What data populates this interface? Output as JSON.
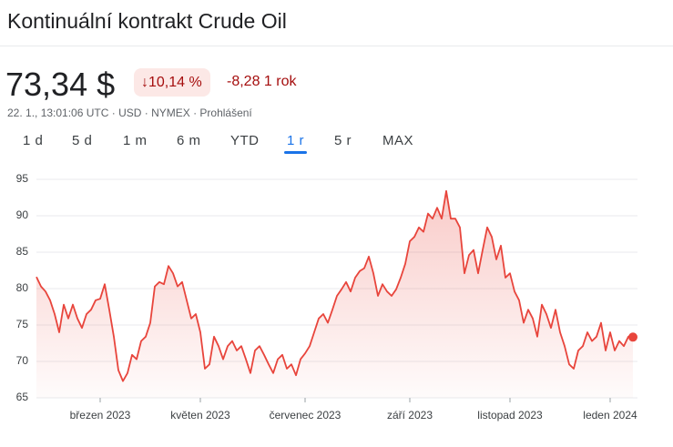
{
  "header": {
    "title": "Kontinuální kontrakt Crude Oil"
  },
  "quote": {
    "price": "73,34 $",
    "change_pct": "10,14 %",
    "change": "-8,28",
    "period": "1 rok",
    "meta": "22. 1., 13:01:06 UTC · USD · NYMEX · Prohlášení"
  },
  "tabs": [
    "1 d",
    "5 d",
    "1 m",
    "6 m",
    "YTD",
    "1 r",
    "5 r",
    "MAX"
  ],
  "chart_data": {
    "type": "line",
    "color": "#e8453c",
    "grid": true,
    "ylim": [
      65,
      95
    ],
    "yticks": [
      65,
      70,
      75,
      80,
      85,
      90,
      95
    ],
    "categories": [
      null,
      null,
      null,
      null,
      null,
      null,
      null,
      null,
      null,
      null,
      null,
      null,
      null,
      null,
      "březen 2023",
      null,
      null,
      null,
      null,
      null,
      null,
      null,
      null,
      null,
      null,
      null,
      null,
      null,
      null,
      null,
      null,
      null,
      null,
      null,
      null,
      null,
      "květen 2023",
      null,
      null,
      null,
      null,
      null,
      null,
      null,
      null,
      null,
      null,
      null,
      null,
      null,
      null,
      null,
      null,
      null,
      null,
      null,
      null,
      null,
      null,
      "červenec 2023",
      null,
      null,
      null,
      null,
      null,
      null,
      null,
      null,
      null,
      null,
      null,
      null,
      null,
      null,
      null,
      null,
      null,
      null,
      null,
      null,
      null,
      null,
      "září 2023",
      null,
      null,
      null,
      null,
      null,
      null,
      null,
      null,
      null,
      null,
      null,
      null,
      null,
      null,
      null,
      null,
      null,
      null,
      null,
      null,
      null,
      "listopad 2023",
      null,
      null,
      null,
      null,
      null,
      null,
      null,
      null,
      null,
      null,
      null,
      null,
      null,
      null,
      null,
      null,
      null,
      null,
      null,
      null,
      null,
      "leden 2024",
      null,
      null,
      null,
      null,
      null
    ],
    "values": [
      81.6,
      80.3,
      79.6,
      78.4,
      76.5,
      74.0,
      77.8,
      75.9,
      77.8,
      75.9,
      74.6,
      76.5,
      77.1,
      78.4,
      78.6,
      80.6,
      77.1,
      73.4,
      68.8,
      67.3,
      68.4,
      70.9,
      70.3,
      72.8,
      73.4,
      75.3,
      80.3,
      80.9,
      80.6,
      83.1,
      82.1,
      80.3,
      80.9,
      78.4,
      75.9,
      76.5,
      74.0,
      69.0,
      69.6,
      73.4,
      72.1,
      70.3,
      72.1,
      72.8,
      71.5,
      72.1,
      70.3,
      68.4,
      71.5,
      72.1,
      70.9,
      69.6,
      68.4,
      70.3,
      70.9,
      69.0,
      69.6,
      68.1,
      70.3,
      71.1,
      72.1,
      74.0,
      75.9,
      76.5,
      75.3,
      77.1,
      79.0,
      79.9,
      80.9,
      79.6,
      81.5,
      82.4,
      82.8,
      84.4,
      82.1,
      79.0,
      80.6,
      79.6,
      79.0,
      79.9,
      81.5,
      83.4,
      86.5,
      87.1,
      88.4,
      87.8,
      90.3,
      89.6,
      91.1,
      89.6,
      93.4,
      89.6,
      89.6,
      88.4,
      82.1,
      84.6,
      85.3,
      82.1,
      85.3,
      88.4,
      87.1,
      84.0,
      85.9,
      81.5,
      82.1,
      79.6,
      78.4,
      75.3,
      77.1,
      75.9,
      73.4,
      77.8,
      76.5,
      74.6,
      77.1,
      74.0,
      72.1,
      69.6,
      69.0,
      71.5,
      72.1,
      74.0,
      72.8,
      73.4,
      75.3,
      71.5,
      74.0,
      71.5,
      72.8,
      72.1,
      73.4,
      73.34
    ]
  }
}
